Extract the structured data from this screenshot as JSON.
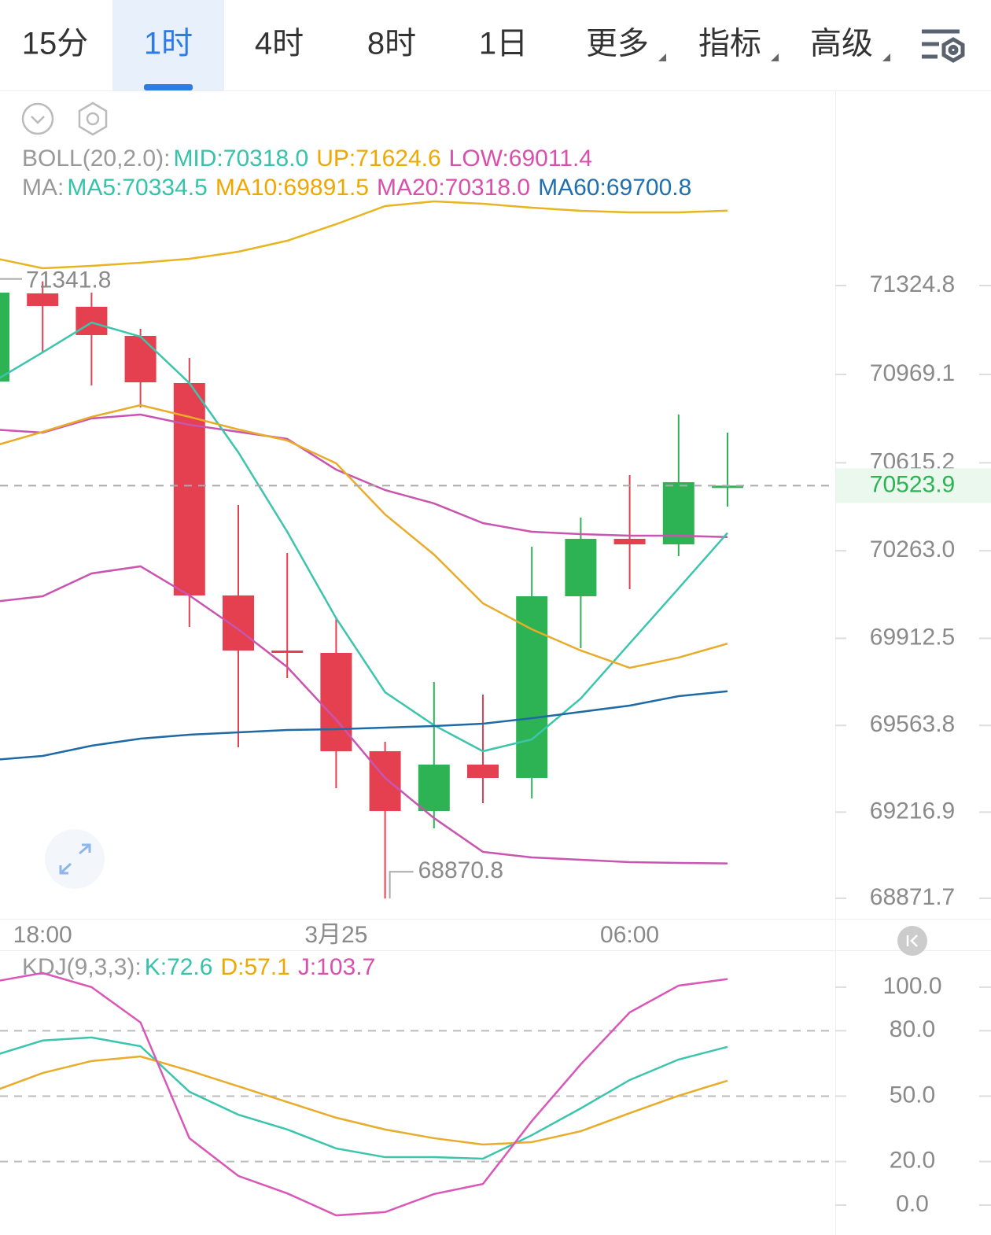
{
  "tabs": {
    "items": [
      "15分",
      "1时",
      "4时",
      "8时",
      "1日",
      "更多",
      "指标",
      "高级"
    ],
    "selected": 1,
    "dropdown_from": 5
  },
  "chart_data": [
    {
      "type": "candlestick",
      "legends": [
        {
          "title": "BOLL(20,2.0):",
          "entries": [
            {
              "text": "MID:70318.0",
              "color": "#35c3a9"
            },
            {
              "text": "UP:71624.6",
              "color": "#f0a800"
            },
            {
              "text": "LOW:69011.4",
              "color": "#d94fae"
            }
          ]
        },
        {
          "title": "MA:",
          "entries": [
            {
              "text": "MA5:70334.5",
              "color": "#35c3a9"
            },
            {
              "text": "MA10:69891.5",
              "color": "#f0a800"
            },
            {
              "text": "MA20:70318.0",
              "color": "#d94fae"
            },
            {
              "text": "MA60:69700.8",
              "color": "#2070b0"
            }
          ]
        }
      ],
      "categories": [
        null,
        "18:00",
        null,
        null,
        null,
        null,
        null,
        "3月25",
        null,
        null,
        null,
        null,
        null,
        "06:00",
        null,
        null
      ],
      "candles": [
        {
          "open": 70940.7,
          "high": 71318.5,
          "low": 70924.9,
          "close": 71296.5
        },
        {
          "open": 71293.4,
          "high": 71341.8,
          "low": 71057.2,
          "close": 71243.0
        },
        {
          "open": 71239.8,
          "high": 71296.5,
          "low": 70924.9,
          "close": 71126.5
        },
        {
          "open": 71123.3,
          "high": 71151.7,
          "low": 70836.8,
          "close": 70937.5
        },
        {
          "open": 70934.4,
          "high": 71035.1,
          "low": 69958.2,
          "close": 70084.1
        },
        {
          "open": 70084.1,
          "high": 70446.3,
          "low": 69476.4,
          "close": 69863.7
        },
        {
          "open": 69863.7,
          "high": 70254.2,
          "low": 69753.5,
          "close": 69854.3
        },
        {
          "open": 69854.3,
          "high": 69989.7,
          "low": 69312.6,
          "close": 69460.6
        },
        {
          "open": 69460.6,
          "high": 69498.4,
          "low": 68870.8,
          "close": 69221.3
        },
        {
          "open": 69221.3,
          "high": 69737.8,
          "low": 69152.0,
          "close": 69407.1
        },
        {
          "open": 69407.1,
          "high": 69687.4,
          "low": 69252.8,
          "close": 69353.6
        },
        {
          "open": 69353.6,
          "high": 70279.4,
          "low": 69271.7,
          "close": 70081.0
        },
        {
          "open": 70081.0,
          "high": 70395.9,
          "low": 69873.2,
          "close": 70310.9
        },
        {
          "open": 70310.9,
          "high": 70565.9,
          "low": 70109.3,
          "close": 70288.8
        },
        {
          "open": 70288.8,
          "high": 70808.4,
          "low": 70241.6,
          "close": 70537.6
        },
        {
          "open": 70520.0,
          "high": 70736.0,
          "low": 70440.0,
          "close": 70523.9
        }
      ],
      "up_color": "#2db353",
      "down_color": "#e5404f",
      "lines": [
        {
          "color": "#e8b520",
          "values": [
            71435.1,
            71394.1,
            71403.6,
            71416.2,
            71431.9,
            71460.3,
            71504.3,
            71570.5,
            71642.9,
            71661.8,
            71652.3,
            71636.6,
            71624.0,
            71617.7,
            71617.7,
            71624.6
          ]
        },
        {
          "color": "#c955b0",
          "values": [
            70748.6,
            70736.0,
            70792.7,
            70808.4,
            70767.5,
            70739.1,
            70710.8,
            70588.0,
            70506.1,
            70452.6,
            70373.8,
            70339.2,
            70329.8,
            70323.5,
            70323.5,
            70318.0
          ]
        },
        {
          "color": "#c955b0",
          "values": [
            70058.9,
            70081.0,
            70172.3,
            70200.7,
            70084.1,
            69948.7,
            69797.6,
            69586.6,
            69353.6,
            69193.0,
            69057.6,
            69035.5,
            69026.1,
            69016.6,
            69013.5,
            69011.4
          ]
        },
        {
          "color": "#3cc5ad",
          "values": [
            70940.7,
            71057.2,
            71176.8,
            71120.2,
            70934.4,
            70657.3,
            70339.2,
            69992.8,
            69696.8,
            69564.6,
            69460.6,
            69507.9,
            69671.6,
            69892.1,
            70112.5,
            70334.5
          ]
        },
        {
          "color": "#e9ac2a",
          "values": [
            70682.5,
            70739.1,
            70799.0,
            70846.2,
            70799.0,
            70748.6,
            70704.5,
            70613.2,
            70408.5,
            70247.9,
            70052.7,
            69948.7,
            69863.7,
            69794.4,
            69835.4,
            69891.5
          ]
        },
        {
          "color": "#1f6aa5",
          "values": [
            69426.0,
            69441.7,
            69482.7,
            69511.0,
            69526.8,
            69536.2,
            69545.7,
            69548.8,
            69555.1,
            69561.4,
            69570.9,
            69592.9,
            69618.1,
            69643.3,
            69681.1,
            69700.8
          ]
        }
      ],
      "ylim": [
        68789.8,
        72105.8
      ],
      "yticks": [
        71324.8,
        70969.1,
        70615.2,
        {
          "value": 70263,
          "label": "70263.0"
        },
        69912.5,
        69563.8,
        69216.9,
        68871.7
      ]
    },
    {
      "type": "line",
      "legends": [
        {
          "title": "KDJ(9,3,3):",
          "entries": [
            {
              "text": "K:72.6",
              "color": "#35c3a9"
            },
            {
              "text": "D:57.1",
              "color": "#f0a800"
            },
            {
              "text": "J:103.7",
              "color": "#d94fae"
            }
          ]
        }
      ],
      "lines": [
        {
          "color": "#3cc5ad",
          "values": [
            68.6,
            75.5,
            76.9,
            72.9,
            52.0,
            41.5,
            34.7,
            26.0,
            22.0,
            22.0,
            21.3,
            32.1,
            44.4,
            57.4,
            66.8,
            72.6
          ]
        },
        {
          "color": "#e9ac2a",
          "values": [
            52.3,
            60.6,
            66.1,
            68.2,
            61.7,
            54.5,
            47.3,
            40.1,
            34.7,
            30.7,
            27.8,
            28.9,
            33.9,
            42.2,
            50.2,
            57.1
          ]
        },
        {
          "color": "#d957b8",
          "values": [
            102.5,
            106.5,
            100.0,
            83.8,
            30.7,
            13.4,
            5.4,
            -4.7,
            -3.2,
            5.1,
            9.7,
            38.6,
            64.6,
            88.4,
            100.7,
            103.7
          ]
        }
      ],
      "ylim": [
        -13.7,
        116.2
      ],
      "yticks": [
        {
          "value": 100,
          "label": "100.0"
        },
        {
          "value": 80,
          "label": "80.0",
          "grid": true
        },
        {
          "value": 50,
          "label": "50.0",
          "grid": true
        },
        {
          "value": 20,
          "label": "20.0",
          "grid": true
        },
        {
          "value": 0,
          "label": "0.0"
        }
      ]
    }
  ]
}
